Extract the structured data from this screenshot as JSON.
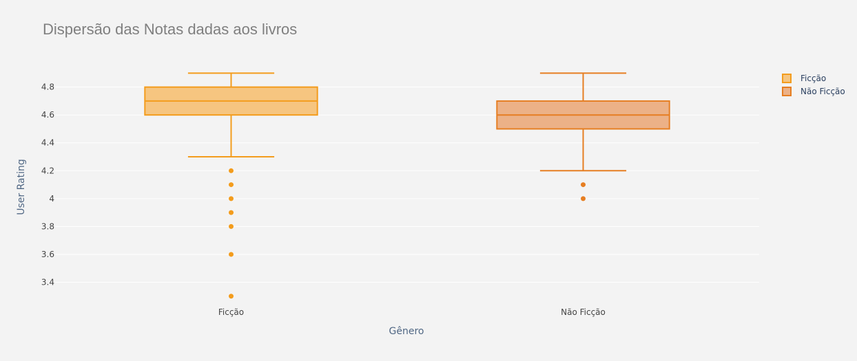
{
  "chart_data": {
    "type": "box",
    "title": "Dispersão das Notas dadas aos livros",
    "xlabel": "Gênero",
    "ylabel": "User Rating",
    "categories": [
      "Ficção",
      "Não Ficção"
    ],
    "ylim": [
      3.22,
      5.03
    ],
    "yticks": [
      3.4,
      3.6,
      3.8,
      4,
      4.2,
      4.4,
      4.6,
      4.8
    ],
    "ytick_labels": [
      "3.4",
      "3.6",
      "3.8",
      "4",
      "4.2",
      "4.4",
      "4.6",
      "4.8"
    ],
    "grid": true,
    "legend": "top-right",
    "series": [
      {
        "name": "Ficção",
        "category": "Ficção",
        "color": "#f39c1c",
        "fill": "#f6c580",
        "lower_whisker": 4.3,
        "q1": 4.6,
        "median": 4.7,
        "q3": 4.8,
        "upper_whisker": 4.9,
        "outliers": [
          4.2,
          4.1,
          4.0,
          3.9,
          3.8,
          3.6,
          3.3
        ]
      },
      {
        "name": "Não Ficção",
        "category": "Não Ficção",
        "color": "#e67e22",
        "fill": "#ecb187",
        "lower_whisker": 4.2,
        "q1": 4.5,
        "median": 4.6,
        "q3": 4.7,
        "upper_whisker": 4.9,
        "outliers": [
          4.1,
          4.0
        ]
      }
    ]
  }
}
